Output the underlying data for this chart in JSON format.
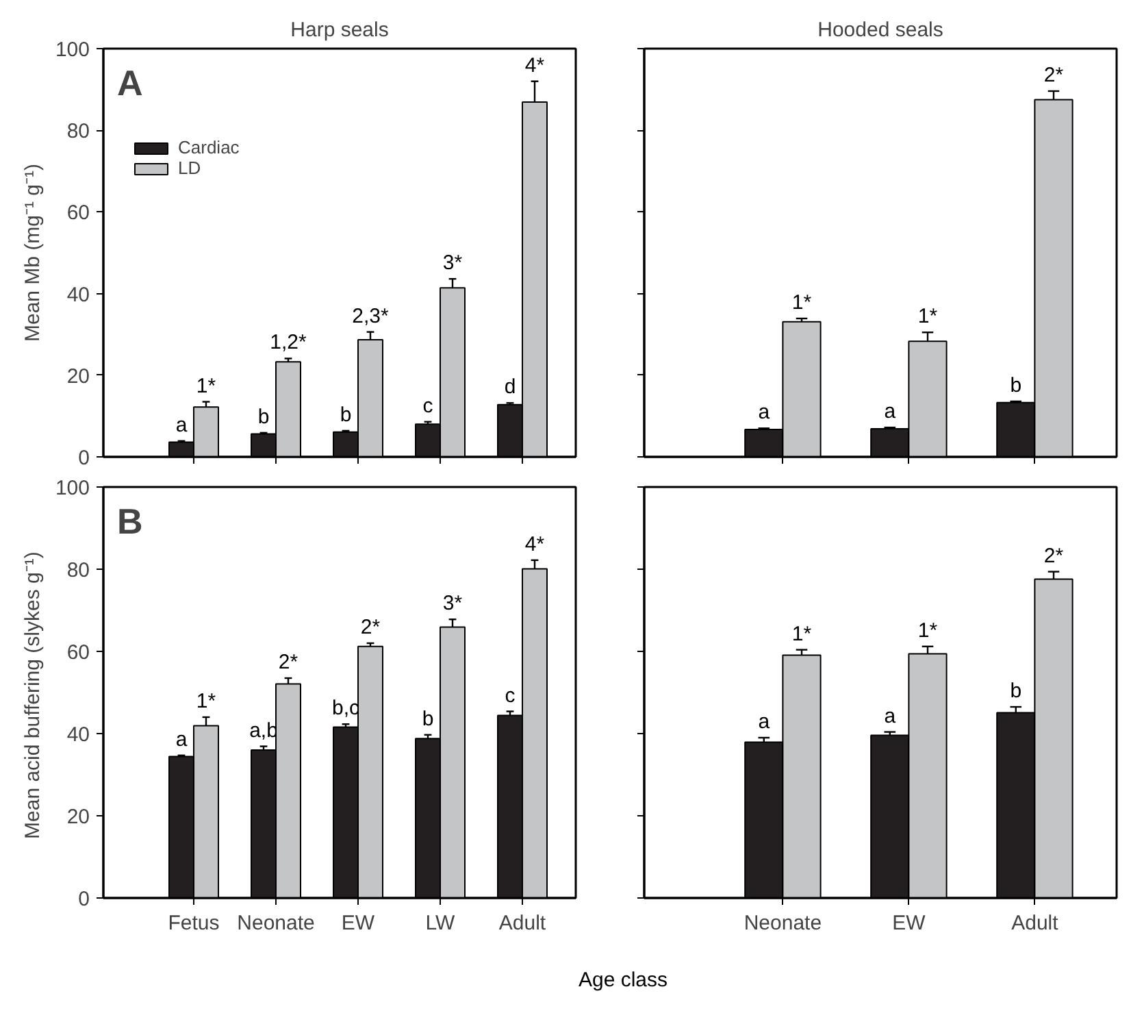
{
  "chart_data": [
    {
      "type": "bar",
      "title": "Harp seals",
      "ylabel": "Mean Mb (mg⁻¹ g⁻¹)",
      "categories": [
        "Fetus",
        "Neonate",
        "EW",
        "LW",
        "Adult"
      ],
      "ylim": [
        0,
        100
      ],
      "yticks": [
        0,
        20,
        40,
        60,
        80,
        100
      ],
      "tick_labels": "y",
      "legend": "top left",
      "grid": false,
      "annotations": [
        "A",
        {
          "text": "a",
          "x": "Fetus",
          "y": 3.6
        },
        {
          "text": "b",
          "x": "Neonate",
          "y": 5.6
        },
        {
          "text": "b",
          "x": "EW",
          "y": 6.1
        },
        {
          "text": "c",
          "x": "LW",
          "y": 8
        },
        {
          "text": "d",
          "x": "Adult",
          "y": 12.8
        },
        {
          "text": "1*",
          "x": "Fetus",
          "y": 12.2
        },
        {
          "text": "1,2*",
          "x": "Neonate",
          "y": 23.3
        },
        {
          "text": "2,3*",
          "x": "EW",
          "y": 28.7
        },
        {
          "text": "3*",
          "x": "LW",
          "y": 41.4
        },
        {
          "text": "4*",
          "x": "Adult",
          "y": 86.9
        }
      ],
      "series": [
        {
          "name": "Cardiac",
          "color": "#231f20",
          "values": [
            3.6,
            5.6,
            6.1,
            8,
            12.8
          ],
          "errors": [
            [
              3.6,
              3.9
            ],
            [
              5.6,
              5.9
            ],
            [
              6.1,
              6.4
            ],
            [
              8,
              8.6
            ],
            [
              12.8,
              13.2
            ]
          ]
        },
        {
          "name": "LD",
          "color": "#c4c5c7",
          "values": [
            12.2,
            23.3,
            28.7,
            41.4,
            86.9
          ],
          "errors": [
            [
              12.2,
              13.5
            ],
            [
              23.3,
              24.1
            ],
            [
              28.7,
              30.6
            ],
            [
              41.4,
              43.6
            ],
            [
              86.9,
              92
            ]
          ]
        }
      ]
    },
    {
      "type": "bar",
      "title": "Hooded seals",
      "categories": [
        "Neonate",
        "EW",
        "Adult"
      ],
      "ylim": [
        0,
        100
      ],
      "yticks": [
        0,
        20,
        40,
        60,
        80,
        100
      ],
      "tick_labels": false,
      "grid": false,
      "annotations": [
        {
          "text": "a",
          "x": "Neonate",
          "y": 6.7
        },
        {
          "text": "a",
          "x": "EW",
          "y": 6.9
        },
        {
          "text": "b",
          "x": "Adult",
          "y": 13.3
        },
        {
          "text": "1*",
          "x": "Neonate",
          "y": 33.1
        },
        {
          "text": "1*",
          "x": "EW",
          "y": 28.3
        },
        {
          "text": "2*",
          "x": "Adult",
          "y": 87.5
        }
      ],
      "series": [
        {
          "color": "#231f20",
          "values": [
            6.7,
            6.9,
            13.3
          ],
          "errors": [
            [
              6.7,
              7
            ],
            [
              6.9,
              7.2
            ],
            [
              13.3,
              13.6
            ]
          ]
        },
        {
          "color": "#c4c5c7",
          "values": [
            33.1,
            28.3,
            87.5
          ],
          "errors": [
            [
              33.1,
              33.9
            ],
            [
              28.3,
              30.5
            ],
            [
              87.5,
              89.6
            ]
          ]
        }
      ]
    },
    {
      "type": "bar",
      "ylabel": "Mean acid buffering  (slykes g⁻¹)",
      "xlabel": "Age class",
      "categories": [
        "Fetus",
        "Neonate",
        "EW",
        "LW",
        "Adult"
      ],
      "ylim": [
        0,
        100
      ],
      "yticks": [
        0,
        20,
        40,
        60,
        80,
        100
      ],
      "grid": false,
      "annotations": [
        "B",
        {
          "text": "a",
          "x": "Fetus",
          "y": 34.4
        },
        {
          "text": "a,b",
          "x": "Neonate",
          "y": 36
        },
        {
          "text": "b,c",
          "x": "EW",
          "y": 41.6
        },
        {
          "text": "b",
          "x": "LW",
          "y": 38.8
        },
        {
          "text": "c",
          "x": "Adult",
          "y": 44.4
        },
        {
          "text": "1*",
          "x": "Fetus",
          "y": 41.9
        },
        {
          "text": "2*",
          "x": "Neonate",
          "y": 52.1
        },
        {
          "text": "2*",
          "x": "EW",
          "y": 61.2
        },
        {
          "text": "3*",
          "x": "LW",
          "y": 65.9
        },
        {
          "text": "4*",
          "x": "Adult",
          "y": 80.1
        }
      ],
      "series": [
        {
          "color": "#231f20",
          "values": [
            34.4,
            36,
            41.6,
            38.8,
            44.4
          ],
          "errors": [
            [
              34.4,
              34.7
            ],
            [
              36,
              36.9
            ],
            [
              41.6,
              42.3
            ],
            [
              38.8,
              39.7
            ],
            [
              44.4,
              45.4
            ]
          ]
        },
        {
          "color": "#c4c5c7",
          "values": [
            41.9,
            52.1,
            61.2,
            65.9,
            80.1
          ],
          "errors": [
            [
              41.9,
              44
            ],
            [
              52.1,
              53.5
            ],
            [
              61.2,
              62
            ],
            [
              65.9,
              67.8
            ],
            [
              80.1,
              82.2
            ]
          ]
        }
      ]
    },
    {
      "type": "bar",
      "categories": [
        "Neonate",
        "EW",
        "Adult"
      ],
      "ylim": [
        0,
        100
      ],
      "yticks": [
        0,
        20,
        40,
        60,
        80,
        100
      ],
      "tick_labels": "x",
      "grid": false,
      "annotations": [
        {
          "text": "a",
          "x": "Neonate",
          "y": 37.9
        },
        {
          "text": "a",
          "x": "EW",
          "y": 39.6
        },
        {
          "text": "b",
          "x": "Adult",
          "y": 45.1
        },
        {
          "text": "1*",
          "x": "Neonate",
          "y": 59.1
        },
        {
          "text": "1*",
          "x": "EW",
          "y": 59.4
        },
        {
          "text": "2*",
          "x": "Adult",
          "y": 77.6
        }
      ],
      "series": [
        {
          "color": "#231f20",
          "values": [
            37.9,
            39.6,
            45.1
          ],
          "errors": [
            [
              37.9,
              39
            ],
            [
              39.6,
              40.4
            ],
            [
              45.1,
              46.5
            ]
          ]
        },
        {
          "color": "#c4c5c7",
          "values": [
            59.1,
            59.4,
            77.6
          ],
          "errors": [
            [
              59.1,
              60.4
            ],
            [
              59.4,
              61.2
            ],
            [
              77.6,
              79.4
            ]
          ]
        }
      ]
    }
  ]
}
